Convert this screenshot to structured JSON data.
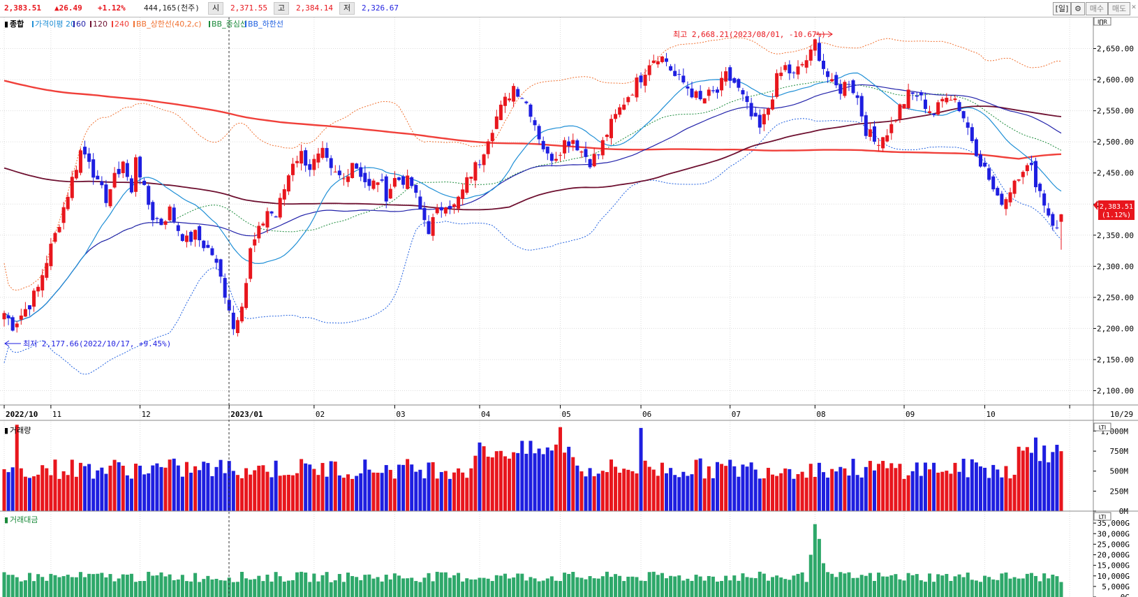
{
  "header": {
    "current": "2,383.51",
    "change": "▲26.49",
    "change_pct": "+1.12%",
    "volume": "444,165(천주)",
    "open_label": "시",
    "open": "2,371.55",
    "high_label": "고",
    "high": "2,384.14",
    "low_label": "저",
    "low": "2,326.67",
    "period_btn": "[일]",
    "settings_btn": "⚙",
    "buy_btn": "매수",
    "sell_btn": "매도",
    "close_btn": "✕"
  },
  "colors": {
    "up": "#e8161d",
    "down": "#1e1ee0",
    "ma20": "#1f8fd6",
    "ma60": "#2222aa",
    "ma120": "#6e1030",
    "ma240": "#f0403a",
    "bb_upper": "#f07030",
    "bb_mid": "#1a8a3a",
    "bb_lower": "#2060e0",
    "amount": "#2ea86a"
  },
  "legend": {
    "main": "종합",
    "items": [
      {
        "text": "가격이평 20",
        "color": "#1f8fd6"
      },
      {
        "text": "60",
        "color": "#2222aa"
      },
      {
        "text": "120",
        "color": "#6e1030"
      },
      {
        "text": "240",
        "color": "#f0403a"
      },
      {
        "text": "BB_상한선(40,2,c)",
        "color": "#f07030"
      },
      {
        "text": "BB_중심선",
        "color": "#1a8a3a"
      },
      {
        "text": "BB_하한선",
        "color": "#2060e0"
      }
    ]
  },
  "annotations": {
    "high_note": "최고 2,668.21(2023/08/01, -10.67%)",
    "low_note": "최저 2,177.66(2022/10/17, +9.45%)",
    "price_tag": "2,383.51",
    "price_tag_pct": "(1.12%)",
    "axis_chip": "I∏R",
    "volume_chip": "LTI",
    "amount_chip": "LTI"
  },
  "panels": {
    "volume_title": "거래량",
    "amount_title": "거래대금"
  },
  "chart_data": {
    "type": "candlestick",
    "title": "종합",
    "ylim": [
      2077,
      2700
    ],
    "y_ticks": [
      "2,650.00",
      "2,600.00",
      "2,550.00",
      "2,500.00",
      "2,450.00",
      "2,400.00",
      "2,350.00",
      "2,300.00",
      "2,250.00",
      "2,200.00",
      "2,150.00",
      "2,100.00"
    ],
    "y_tick_values": [
      2650,
      2600,
      2550,
      2500,
      2450,
      2400,
      2350,
      2300,
      2250,
      2200,
      2150,
      2100
    ],
    "x_ticks": [
      {
        "label": "2022/10",
        "day": 0
      },
      {
        "label": "11",
        "day": 11
      },
      {
        "label": "12",
        "day": 32
      },
      {
        "label": "2023/01",
        "day": 53
      },
      {
        "label": "02",
        "day": 73
      },
      {
        "label": "03",
        "day": 92
      },
      {
        "label": "04",
        "day": 112
      },
      {
        "label": "05",
        "day": 131
      },
      {
        "label": "06",
        "day": 150
      },
      {
        "label": "07",
        "day": 171
      },
      {
        "label": "08",
        "day": 191
      },
      {
        "label": "09",
        "day": 212
      },
      {
        "label": "10",
        "day": 231
      },
      {
        "label": "10/29",
        "day": 251
      }
    ],
    "anchors": [
      [
        0,
        2225
      ],
      [
        2,
        2205
      ],
      [
        4,
        2222
      ],
      [
        6,
        2240
      ],
      [
        8,
        2265
      ],
      [
        10,
        2310
      ],
      [
        12,
        2350
      ],
      [
        14,
        2395
      ],
      [
        16,
        2440
      ],
      [
        18,
        2485
      ],
      [
        20,
        2475
      ],
      [
        22,
        2430
      ],
      [
        24,
        2410
      ],
      [
        26,
        2440
      ],
      [
        28,
        2470
      ],
      [
        30,
        2415
      ],
      [
        31,
        2480
      ],
      [
        33,
        2420
      ],
      [
        35,
        2380
      ],
      [
        37,
        2370
      ],
      [
        39,
        2390
      ],
      [
        41,
        2360
      ],
      [
        43,
        2340
      ],
      [
        45,
        2350
      ],
      [
        47,
        2335
      ],
      [
        49,
        2320
      ],
      [
        51,
        2280
      ],
      [
        53,
        2235
      ],
      [
        54,
        2200
      ],
      [
        56,
        2245
      ],
      [
        57,
        2275
      ],
      [
        58,
        2325
      ],
      [
        60,
        2355
      ],
      [
        62,
        2390
      ],
      [
        64,
        2380
      ],
      [
        66,
        2425
      ],
      [
        68,
        2470
      ],
      [
        70,
        2480
      ],
      [
        72,
        2460
      ],
      [
        75,
        2480
      ],
      [
        77,
        2450
      ],
      [
        80,
        2440
      ],
      [
        82,
        2470
      ],
      [
        84,
        2450
      ],
      [
        86,
        2425
      ],
      [
        88,
        2440
      ],
      [
        90,
        2415
      ],
      [
        92,
        2440
      ],
      [
        94,
        2440
      ],
      [
        96,
        2430
      ],
      [
        98,
        2390
      ],
      [
        100,
        2360
      ],
      [
        102,
        2385
      ],
      [
        104,
        2405
      ],
      [
        106,
        2395
      ],
      [
        108,
        2420
      ],
      [
        110,
        2450
      ],
      [
        112,
        2470
      ],
      [
        114,
        2510
      ],
      [
        116,
        2540
      ],
      [
        118,
        2565
      ],
      [
        120,
        2590
      ],
      [
        122,
        2575
      ],
      [
        124,
        2550
      ],
      [
        126,
        2510
      ],
      [
        128,
        2475
      ],
      [
        130,
        2480
      ],
      [
        132,
        2500
      ],
      [
        134,
        2505
      ],
      [
        136,
        2485
      ],
      [
        138,
        2470
      ],
      [
        140,
        2480
      ],
      [
        142,
        2515
      ],
      [
        144,
        2540
      ],
      [
        146,
        2565
      ],
      [
        148,
        2585
      ],
      [
        150,
        2605
      ],
      [
        152,
        2630
      ],
      [
        154,
        2640
      ],
      [
        156,
        2630
      ],
      [
        158,
        2605
      ],
      [
        160,
        2595
      ],
      [
        162,
        2580
      ],
      [
        164,
        2565
      ],
      [
        166,
        2575
      ],
      [
        168,
        2580
      ],
      [
        170,
        2605
      ],
      [
        172,
        2595
      ],
      [
        174,
        2570
      ],
      [
        176,
        2540
      ],
      [
        178,
        2520
      ],
      [
        180,
        2555
      ],
      [
        182,
        2600
      ],
      [
        184,
        2620
      ],
      [
        186,
        2605
      ],
      [
        188,
        2625
      ],
      [
        190,
        2640
      ],
      [
        191,
        2660
      ],
      [
        193,
        2620
      ],
      [
        195,
        2590
      ],
      [
        197,
        2585
      ],
      [
        199,
        2600
      ],
      [
        201,
        2570
      ],
      [
        203,
        2520
      ],
      [
        205,
        2500
      ],
      [
        207,
        2510
      ],
      [
        209,
        2525
      ],
      [
        211,
        2555
      ],
      [
        213,
        2575
      ],
      [
        215,
        2575
      ],
      [
        217,
        2560
      ],
      [
        219,
        2545
      ],
      [
        220,
        2555
      ],
      [
        222,
        2580
      ],
      [
        224,
        2570
      ],
      [
        226,
        2540
      ],
      [
        228,
        2505
      ],
      [
        230,
        2470
      ],
      [
        232,
        2440
      ],
      [
        234,
        2405
      ],
      [
        236,
        2410
      ],
      [
        238,
        2440
      ],
      [
        240,
        2460
      ],
      [
        242,
        2455
      ],
      [
        244,
        2420
      ],
      [
        246,
        2385
      ],
      [
        248,
        2357
      ],
      [
        249,
        2383
      ]
    ],
    "price_axis_tag": 2383.51,
    "annotated_high": 2668.21,
    "annotated_low": 2177.66,
    "series": [
      {
        "name": "가격이평 20",
        "window": 20
      },
      {
        "name": "60",
        "window": 60
      },
      {
        "name": "120",
        "window": 120
      },
      {
        "name": "240",
        "window": 240
      },
      {
        "name": "BB_상한선(40,2,c)"
      },
      {
        "name": "BB_중심선"
      },
      {
        "name": "BB_하한선"
      }
    ],
    "volume": {
      "title": "거래량",
      "ylim": [
        0,
        1100
      ],
      "unit": "M",
      "y_ticks": [
        "1,000M",
        "750M",
        "500M",
        "250M",
        "0M"
      ],
      "y_tick_values": [
        1000,
        750,
        500,
        250,
        0
      ]
    },
    "amount": {
      "title": "거래대금",
      "ylim": [
        0,
        40000
      ],
      "unit": "G",
      "y_ticks": [
        "35,000G",
        "30,000G",
        "25,000G",
        "20,000G",
        "15,000G",
        "10,000G",
        "5,000G",
        "0G"
      ],
      "y_tick_values": [
        35000,
        30000,
        25000,
        20000,
        15000,
        10000,
        5000,
        0
      ]
    }
  }
}
